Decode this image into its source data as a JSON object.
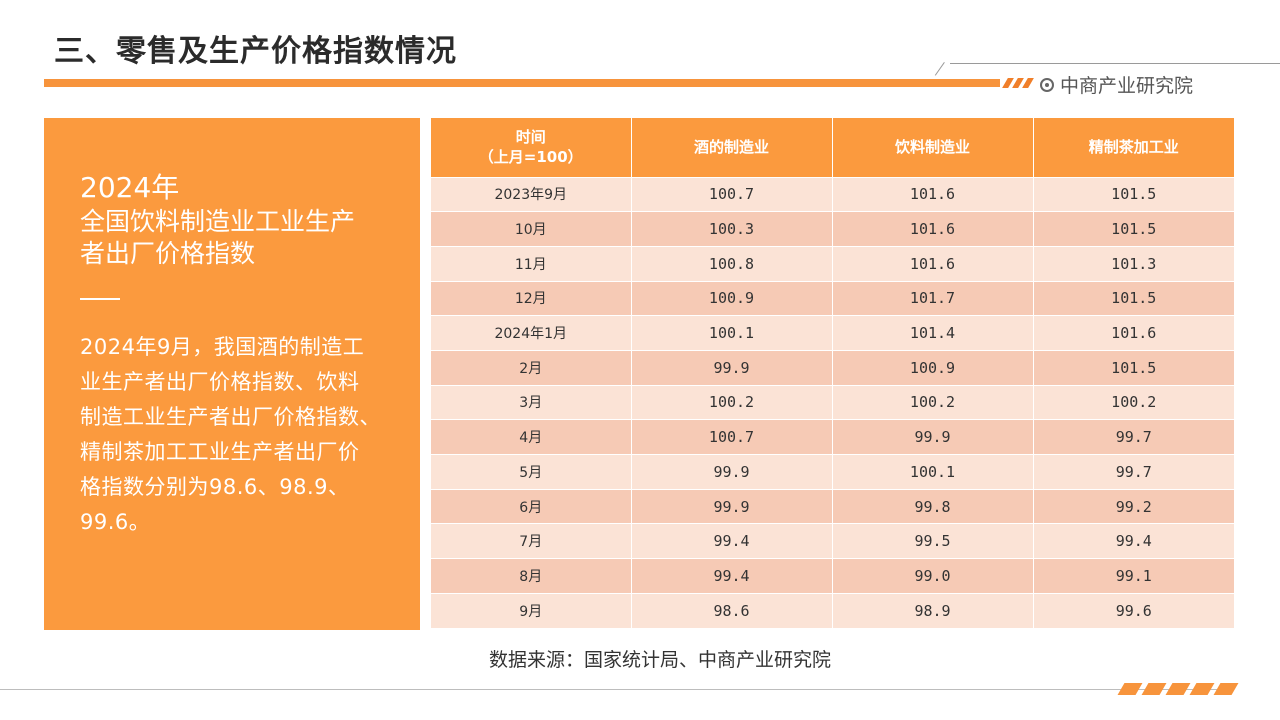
{
  "page": {
    "title": "三、零售及生产价格指数情况",
    "brand_name": "中商产业研究院"
  },
  "colors": {
    "accent": "#fb9a3e",
    "row_light": "#fbe3d6",
    "row_dark": "#f6cab5",
    "stripe": "#f07f2a"
  },
  "left_panel": {
    "year": "2024年",
    "heading_line1": "全国饮料制造业工业生产",
    "heading_line2": "者出厂价格指数",
    "body_lines": [
      "2024年9月，我国酒的制造工",
      "业生产者出厂价格指数、饮料",
      "制造工业生产者出厂价格指数、",
      "精制茶加工工业生产者出厂价",
      "格指数分别为98.6、98.9、",
      "99.6。"
    ]
  },
  "table": {
    "headers": [
      "时间\n（上月=100）",
      "酒的制造业",
      "饮料制造业",
      "精制茶加工业"
    ],
    "header_time_line1": "时间",
    "header_time_line2": "（上月=100）",
    "rows": [
      [
        "2023年9月",
        "100.7",
        "101.6",
        "101.5"
      ],
      [
        "10月",
        "100.3",
        "101.6",
        "101.5"
      ],
      [
        "11月",
        "100.8",
        "101.6",
        "101.3"
      ],
      [
        "12月",
        "100.9",
        "101.7",
        "101.5"
      ],
      [
        "2024年1月",
        "100.1",
        "101.4",
        "101.6"
      ],
      [
        "2月",
        "99.9",
        "100.9",
        "101.5"
      ],
      [
        "3月",
        "100.2",
        "100.2",
        "100.2"
      ],
      [
        "4月",
        "100.7",
        "99.9",
        "99.7"
      ],
      [
        "5月",
        "99.9",
        "100.1",
        "99.7"
      ],
      [
        "6月",
        "99.9",
        "99.8",
        "99.2"
      ],
      [
        "7月",
        "99.4",
        "99.5",
        "99.4"
      ],
      [
        "8月",
        "99.4",
        "99.0",
        "99.1"
      ],
      [
        "9月",
        "98.6",
        "98.9",
        "99.6"
      ]
    ]
  },
  "source_note": "数据来源：国家统计局、中商产业研究院"
}
